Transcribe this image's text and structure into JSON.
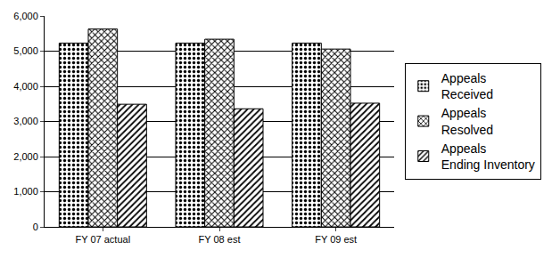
{
  "chart_data": {
    "type": "bar",
    "categories": [
      "FY 07 actual",
      "FY 08 est",
      "FY 09 est"
    ],
    "series": [
      {
        "name": "Appeals Received",
        "color": "#d9d9d9",
        "values": [
          5230,
          5230,
          5230
        ]
      },
      {
        "name": "Appeals Resolved",
        "color": "#a6a6a6",
        "values": [
          5630,
          5340,
          5060
        ]
      },
      {
        "name": "Appeals Ending Inventory",
        "color": "#8c8c8c",
        "values": [
          3490,
          3360,
          3520
        ]
      }
    ],
    "ylim": [
      0,
      6000
    ],
    "yticks": [
      0,
      {
        "value": 1000,
        "label": "1,000"
      },
      {
        "value": 2000,
        "label": "2,000"
      },
      {
        "value": 3000,
        "label": "3,000"
      },
      {
        "value": 4000,
        "label": "4,000"
      },
      {
        "value": 5000,
        "label": "5,000"
      },
      {
        "value": 6000,
        "label": "6,000"
      }
    ],
    "grid": true,
    "legend": "right"
  }
}
